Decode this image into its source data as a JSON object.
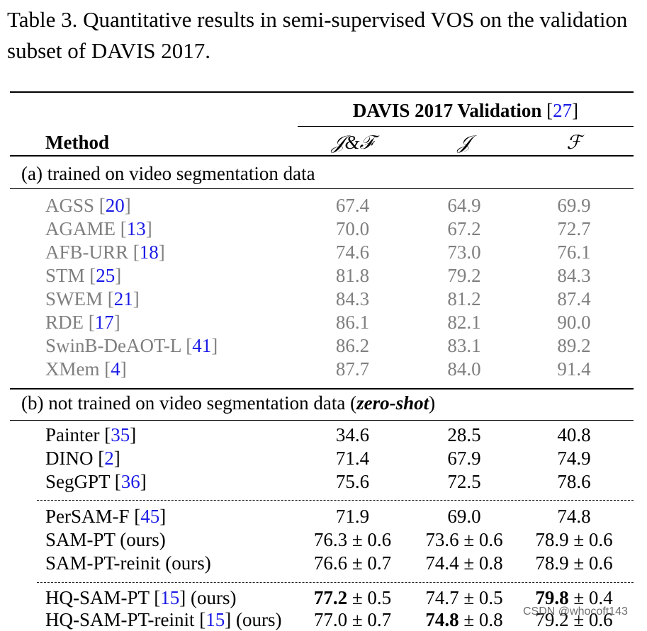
{
  "caption": "Table 3. Quantitative results in semi-supervised VOS on the validation subset of DAVIS 2017.",
  "header": {
    "group_label": "DAVIS 2017 Validation",
    "group_ref": "27",
    "method_label": "Method",
    "columns": [
      "𝒥&ℱ",
      "𝒥",
      "ℱ"
    ]
  },
  "section_a": {
    "label": "(a) trained on video segmentation data",
    "rows": [
      {
        "method": "AGSS",
        "ref": "20",
        "jf": "67.4",
        "j": "64.9",
        "f": "69.9"
      },
      {
        "method": "AGAME",
        "ref": "13",
        "jf": "70.0",
        "j": "67.2",
        "f": "72.7"
      },
      {
        "method": "AFB-URR",
        "ref": "18",
        "jf": "74.6",
        "j": "73.0",
        "f": "76.1"
      },
      {
        "method": "STM",
        "ref": "25",
        "jf": "81.8",
        "j": "79.2",
        "f": "84.3"
      },
      {
        "method": "SWEM",
        "ref": "21",
        "jf": "84.3",
        "j": "81.2",
        "f": "87.4"
      },
      {
        "method": "RDE",
        "ref": "17",
        "jf": "86.1",
        "j": "82.1",
        "f": "90.0"
      },
      {
        "method": "SwinB-DeAOT-L",
        "ref": "41",
        "jf": "86.2",
        "j": "83.1",
        "f": "89.2"
      },
      {
        "method": "XMem",
        "ref": "4",
        "jf": "87.7",
        "j": "84.0",
        "f": "91.4"
      }
    ]
  },
  "section_b": {
    "label_prefix": "(b) not trained on video segmentation data (",
    "label_em": "zero-shot",
    "label_suffix": ")",
    "group1": [
      {
        "method": "Painter",
        "ref": "35",
        "jf": "34.6",
        "j": "28.5",
        "f": "40.8"
      },
      {
        "method": "DINO",
        "ref": "2",
        "jf": "71.4",
        "j": "67.9",
        "f": "74.9"
      },
      {
        "method": "SegGPT",
        "ref": "36",
        "jf": "75.6",
        "j": "72.5",
        "f": "78.6"
      }
    ],
    "group2": [
      {
        "method": "PerSAM-F",
        "ref": "45",
        "suffix": "",
        "jf": "71.9",
        "j": "69.0",
        "f": "74.8"
      },
      {
        "method": "SAM-PT (ours)",
        "ref": "",
        "suffix": "",
        "jf": "76.3 ± 0.6",
        "j": "73.6 ± 0.6",
        "f": "78.9 ± 0.6"
      },
      {
        "method": "SAM-PT-reinit (ours)",
        "ref": "",
        "suffix": "",
        "jf": "76.6 ± 0.7",
        "j": "74.4 ± 0.8",
        "f": "78.9 ± 0.6"
      }
    ],
    "group3": [
      {
        "method": "HQ-SAM-PT",
        "ref": "15",
        "suffix": " (ours)",
        "jf_bold": "77.2",
        "jf_rest": " ± 0.5",
        "j_bold": "",
        "j_rest": "74.7 ± 0.5",
        "f_bold": "79.8",
        "f_rest": " ± 0.4"
      },
      {
        "method": "HQ-SAM-PT-reinit",
        "ref": "15",
        "suffix": " (ours)",
        "jf_bold": "",
        "jf_rest": "77.0 ± 0.7",
        "j_bold": "74.8",
        "j_rest": " ± 0.8",
        "f_bold": "",
        "f_rest": "79.2 ± 0.6"
      }
    ]
  },
  "watermark": "CSDN @whocoft143"
}
